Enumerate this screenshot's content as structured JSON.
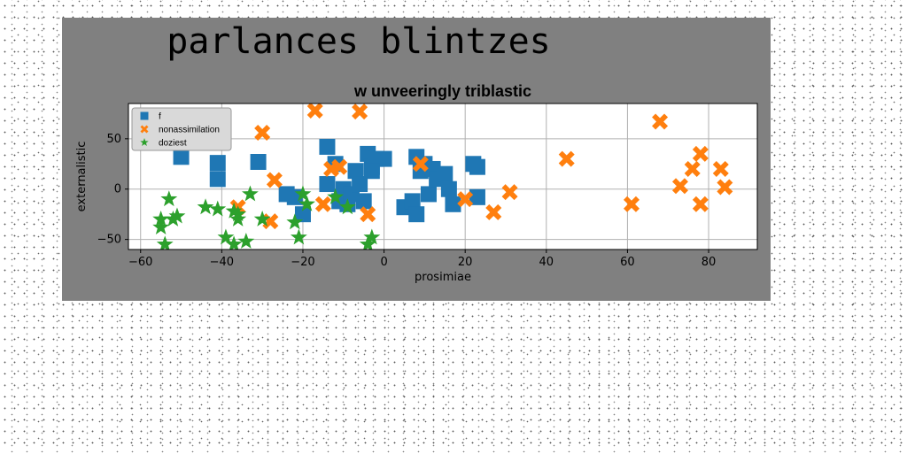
{
  "page": {
    "suptitle": "parlances blintzes",
    "background": "#ffffff",
    "figure_background": "#808080"
  },
  "chart_data": {
    "type": "scatter",
    "title": "w unveeringly triblastic",
    "xlabel": "prosimiae",
    "ylabel": "externalistic",
    "xlim": [
      -63,
      92
    ],
    "ylim": [
      -60,
      85
    ],
    "xticks": [
      -60,
      -40,
      -20,
      0,
      20,
      40,
      60,
      80
    ],
    "yticks": [
      -50,
      0,
      50
    ],
    "grid": true,
    "legend_position": "upper left",
    "series": [
      {
        "name": "f",
        "marker": "square",
        "color": "#1f77b4",
        "points": [
          [
            -50,
            32
          ],
          [
            -41,
            10
          ],
          [
            -41,
            26
          ],
          [
            -31,
            27
          ],
          [
            -22,
            -8
          ],
          [
            -20,
            -25
          ],
          [
            -14,
            42
          ],
          [
            -14,
            5
          ],
          [
            -12,
            25
          ],
          [
            -11,
            -12
          ],
          [
            -10,
            0
          ],
          [
            -9,
            -15
          ],
          [
            -8,
            -5
          ],
          [
            -7,
            18
          ],
          [
            -6,
            5
          ],
          [
            -5,
            -12
          ],
          [
            -4,
            35
          ],
          [
            -3,
            22
          ],
          [
            -2,
            30
          ],
          [
            0,
            30
          ],
          [
            5,
            -18
          ],
          [
            7,
            -12
          ],
          [
            8,
            32
          ],
          [
            8,
            -25
          ],
          [
            9,
            18
          ],
          [
            10,
            25
          ],
          [
            11,
            -5
          ],
          [
            12,
            20
          ],
          [
            13,
            10
          ],
          [
            15,
            15
          ],
          [
            16,
            0
          ],
          [
            17,
            -15
          ],
          [
            22,
            25
          ],
          [
            23,
            22
          ],
          [
            23,
            -8
          ],
          [
            -24,
            -5
          ],
          [
            -3,
            18
          ]
        ]
      },
      {
        "name": "nonassimilation",
        "marker": "x",
        "color": "#ff7f0e",
        "points": [
          [
            -17,
            78
          ],
          [
            -6,
            77
          ],
          [
            -30,
            56
          ],
          [
            -27,
            9
          ],
          [
            -15,
            -15
          ],
          [
            -13,
            20
          ],
          [
            -11,
            22
          ],
          [
            -36,
            -18
          ],
          [
            -28,
            -32
          ],
          [
            -4,
            -25
          ],
          [
            9,
            25
          ],
          [
            20,
            -10
          ],
          [
            27,
            -23
          ],
          [
            31,
            -3
          ],
          [
            45,
            30
          ],
          [
            61,
            -15
          ],
          [
            68,
            67
          ],
          [
            73,
            3
          ],
          [
            76,
            20
          ],
          [
            78,
            35
          ],
          [
            78,
            -15
          ],
          [
            83,
            20
          ],
          [
            84,
            2
          ]
        ]
      },
      {
        "name": "doziest",
        "marker": "star",
        "color": "#2ca02c",
        "points": [
          [
            -55,
            -38
          ],
          [
            -55,
            -30
          ],
          [
            -54,
            -55
          ],
          [
            -53,
            -10
          ],
          [
            -52,
            -30
          ],
          [
            -51,
            -27
          ],
          [
            -44,
            -18
          ],
          [
            -41,
            -20
          ],
          [
            -39,
            -48
          ],
          [
            -37,
            -55
          ],
          [
            -37,
            -22
          ],
          [
            -36,
            -25
          ],
          [
            -36,
            -30
          ],
          [
            -34,
            -52
          ],
          [
            -33,
            -5
          ],
          [
            -30,
            -30
          ],
          [
            -22,
            -33
          ],
          [
            -21,
            -48
          ],
          [
            -20,
            -5
          ],
          [
            -19,
            -15
          ],
          [
            -12,
            -8
          ],
          [
            -9,
            -18
          ],
          [
            -4,
            -55
          ],
          [
            -3,
            -48
          ]
        ]
      }
    ]
  }
}
